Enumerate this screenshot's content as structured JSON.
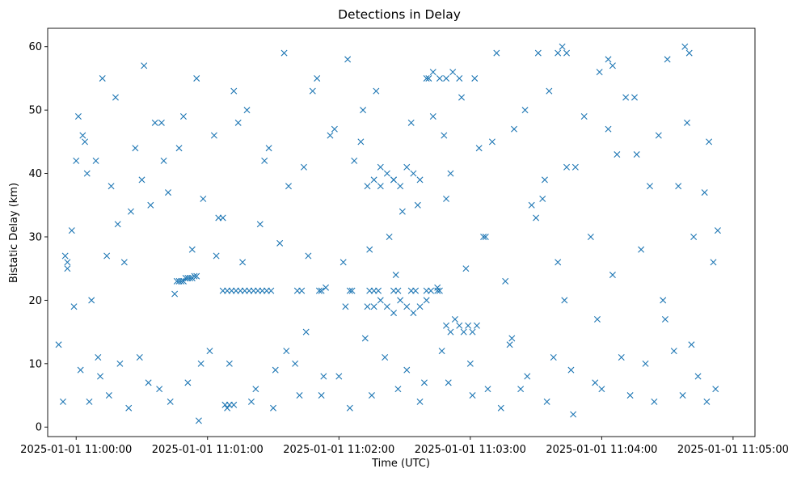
{
  "chart_data": {
    "type": "scatter",
    "title": "Detections in Delay",
    "xlabel": "Time (UTC)",
    "ylabel": "Bistatic Delay (km)",
    "marker": "x",
    "color": "#1f77b4",
    "xlim": [
      "2025-01-01 10:59:47",
      "2025-01-01 11:05:10"
    ],
    "ylim": [
      -1.5,
      62.9
    ],
    "x_ticks": [
      "2025-01-01 11:00:00",
      "2025-01-01 11:01:00",
      "2025-01-01 11:02:00",
      "2025-01-01 11:03:00",
      "2025-01-01 11:04:00",
      "2025-01-01 11:05:00"
    ],
    "y_ticks": [
      0,
      10,
      20,
      30,
      40,
      50,
      60
    ],
    "grid": false,
    "series": [
      {
        "x": [
          "10:59:55",
          "10:59:58",
          "11:00:01",
          "11:00:05",
          "11:00:12",
          "11:00:18",
          "11:00:25",
          "11:00:31",
          "11:00:40",
          "11:00:49",
          "11:00:55",
          "11:01:03",
          "11:01:12",
          "11:01:18",
          "11:01:28",
          "11:01:35",
          "11:01:44",
          "11:01:50",
          "11:01:58",
          "11:02:04",
          "11:02:10",
          "11:02:17",
          "11:02:25",
          "11:02:33",
          "11:02:41",
          "11:02:49",
          "11:02:56",
          "11:03:04",
          "11:03:12",
          "11:03:20",
          "11:03:28",
          "11:03:36",
          "11:03:44",
          "11:03:52",
          "11:03:59",
          "11:04:07",
          "11:04:15",
          "11:04:22",
          "11:04:30",
          "11:04:39",
          "11:04:47",
          "11:04:53",
          "10:59:56",
          "11:00:03",
          "11:00:09",
          "11:00:16",
          "11:00:27",
          "11:00:36",
          "11:00:47",
          "11:00:58",
          "11:01:07",
          "11:01:14",
          "11:01:26",
          "11:01:37",
          "11:01:48",
          "11:01:56",
          "11:02:07",
          "11:02:19",
          "11:02:29",
          "11:02:43",
          "11:02:51",
          "11:03:02",
          "11:03:10",
          "11:03:25",
          "11:03:33",
          "11:03:48",
          "11:04:03",
          "11:04:11",
          "11:04:26",
          "11:04:35",
          "11:04:49",
          "10:59:59",
          "11:00:07",
          "11:00:14",
          "11:00:22",
          "11:00:34",
          "11:00:45",
          "11:00:53",
          "11:01:05",
          "11:01:16",
          "11:01:24",
          "11:01:33",
          "11:01:46",
          "11:01:54",
          "11:02:02",
          "11:02:14",
          "11:02:23",
          "11:02:36",
          "11:02:45",
          "11:02:58",
          "11:03:06",
          "11:03:16",
          "11:03:30",
          "11:03:40",
          "11:03:55",
          "11:04:05",
          "11:04:18",
          "11:04:28",
          "11:04:42",
          "11:04:51",
          "11:00:02",
          "11:00:11",
          "11:00:20",
          "11:00:29",
          "11:00:38",
          "11:00:51",
          "11:01:01",
          "11:01:10",
          "11:01:22",
          "11:01:31",
          "11:01:40",
          "11:01:52",
          "11:02:00",
          "11:02:12",
          "11:02:21",
          "11:02:31",
          "11:02:39",
          "11:02:47",
          "11:03:00",
          "11:03:08",
          "11:03:18",
          "11:03:26",
          "11:03:38",
          "11:03:46",
          "11:03:57",
          "11:04:09",
          "11:04:20",
          "11:04:33",
          "11:04:44",
          "10:59:54",
          "11:00:06",
          "11:00:15",
          "11:00:24",
          "11:00:33",
          "11:00:43",
          "11:00:56",
          "11:01:09",
          "11:01:20",
          "11:01:30",
          "11:01:42",
          "11:01:53",
          "11:02:05",
          "11:02:15",
          "11:02:27",
          "11:02:37",
          "11:02:50",
          "11:03:01",
          "11:03:14",
          "11:03:23",
          "11:03:35",
          "11:03:47",
          "11:04:00",
          "11:04:13",
          "11:04:24",
          "11:04:37",
          "11:04:48",
          "11:00:46",
          "11:00:47",
          "11:00:48",
          "11:00:49",
          "11:00:50",
          "11:00:51",
          "11:00:52",
          "11:00:53",
          "11:00:54",
          "11:00:55",
          "11:01:07",
          "11:01:09",
          "11:01:11",
          "11:01:13",
          "11:01:15",
          "11:01:17",
          "11:01:19",
          "11:01:21",
          "11:01:23",
          "11:01:25",
          "11:01:27",
          "11:01:29",
          "11:01:41",
          "11:01:43",
          "11:01:51",
          "11:01:52",
          "11:02:05",
          "11:02:06",
          "11:02:14",
          "11:02:16",
          "11:02:18",
          "11:02:25",
          "11:02:27",
          "11:02:33",
          "11:02:35",
          "11:02:40",
          "11:02:42",
          "11:02:45",
          "11:02:46",
          "11:02:13",
          "11:02:16",
          "11:02:19",
          "11:02:22",
          "11:02:25",
          "11:02:28",
          "11:02:31",
          "11:02:34",
          "11:02:37",
          "11:02:13",
          "11:02:16",
          "11:02:19",
          "11:02:22",
          "11:02:25",
          "11:02:28",
          "11:02:31",
          "11:02:34",
          "11:02:37",
          "11:02:40",
          "11:02:49",
          "11:02:51",
          "11:02:53",
          "11:02:55",
          "11:02:57",
          "11:02:59",
          "11:03:01",
          "11:03:03",
          "11:02:40",
          "11:02:43",
          "11:02:46",
          "11:02:49",
          "11:02:52",
          "11:02:55",
          "11:01:08",
          "11:01:10",
          "11:01:12",
          "11:03:31",
          "11:03:40",
          "11:03:42",
          "11:03:44",
          "11:04:03",
          "11:04:05",
          "11:04:38",
          "11:04:40",
          "10:59:52",
          "10:59:56",
          "11:00:00",
          "11:00:04",
          "11:00:10",
          "11:00:19",
          "11:00:30",
          "11:00:39",
          "11:00:42",
          "11:00:57",
          "11:01:04",
          "11:01:36",
          "11:01:45",
          "11:02:03",
          "11:02:11",
          "11:02:26",
          "11:02:48",
          "11:03:07",
          "11:03:19",
          "11:03:34",
          "11:03:43",
          "11:03:58",
          "11:04:16",
          "11:04:29",
          "11:04:41",
          "11:04:52"
        ],
        "y": [
          27,
          31,
          49,
          40,
          55,
          52,
          34,
          57,
          42,
          49,
          55,
          46,
          53,
          50,
          44,
          59,
          41,
          55,
          47,
          58,
          45,
          53,
          39,
          48,
          55,
          36,
          52,
          44,
          59,
          47,
          35,
          53,
          41,
          49,
          56,
          43,
          52,
          38,
          58,
          48,
          37,
          31,
          25,
          46,
          42,
          38,
          44,
          48,
          44,
          36,
          33,
          48,
          42,
          38,
          53,
          46,
          42,
          41,
          34,
          49,
          40,
          55,
          45,
          50,
          36,
          41,
          47,
          52,
          46,
          38,
          45,
          19,
          20,
          27,
          26,
          35,
          21,
          28,
          33,
          26,
          32,
          29,
          27,
          22,
          26,
          28,
          30,
          35,
          22,
          25,
          30,
          23,
          33,
          26,
          30,
          24,
          28,
          20,
          30,
          26,
          9,
          8,
          10,
          11,
          6,
          7,
          12,
          10,
          6,
          9,
          10,
          5,
          8,
          14,
          11,
          9,
          7,
          12,
          10,
          6,
          13,
          8,
          11,
          9,
          7,
          11,
          10,
          12,
          8,
          4,
          4,
          5,
          3,
          7,
          4,
          1,
          3,
          4,
          3,
          5,
          8,
          3,
          5,
          6,
          4,
          7,
          5,
          3,
          6,
          4,
          2,
          6,
          5,
          4,
          5,
          4,
          23,
          23,
          23,
          23,
          23.5,
          23.5,
          23.5,
          23.5,
          23.8,
          23.8,
          21.5,
          21.5,
          21.5,
          21.5,
          21.5,
          21.5,
          21.5,
          21.5,
          21.5,
          21.5,
          21.5,
          21.5,
          21.5,
          21.5,
          21.5,
          21.5,
          21.5,
          21.5,
          21.5,
          21.5,
          21.5,
          21.5,
          21.5,
          21.5,
          21.5,
          21.5,
          21.5,
          21.5,
          21.5,
          38,
          39,
          38,
          40,
          39,
          38,
          41,
          40,
          39,
          19,
          19,
          20,
          19,
          18,
          20,
          19,
          18,
          19,
          20,
          16,
          15,
          17,
          16,
          15,
          16,
          15,
          16,
          55,
          56,
          55,
          55,
          56,
          55,
          3.5,
          3.5,
          3.5,
          59,
          59,
          60,
          59,
          58,
          57,
          60,
          59,
          13,
          26,
          42,
          45,
          11,
          32,
          39,
          48,
          37,
          10,
          27,
          12,
          15,
          19,
          50,
          24,
          46,
          30,
          14,
          39,
          20,
          17,
          43,
          17,
          13,
          6
        ]
      }
    ]
  }
}
